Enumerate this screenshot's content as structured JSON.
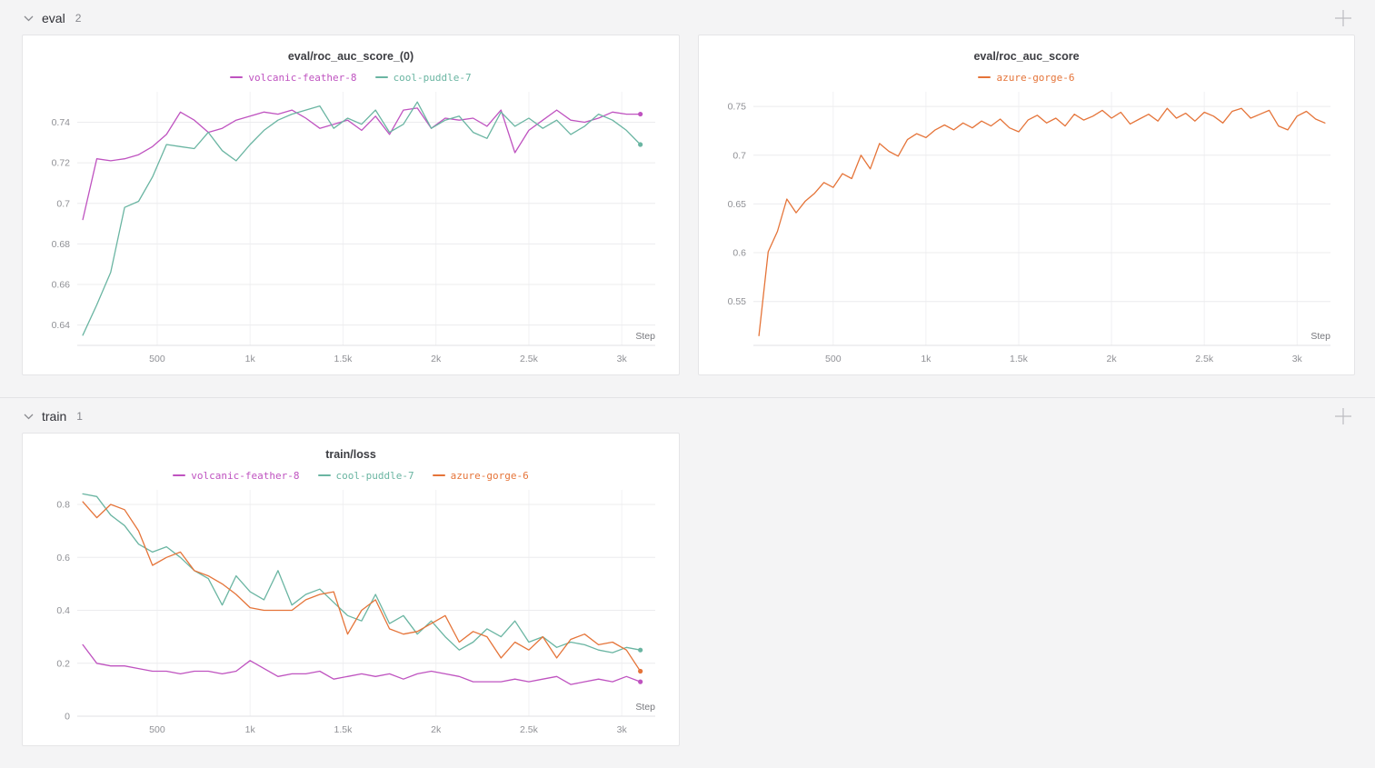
{
  "sections": [
    {
      "title": "eval",
      "count": "2",
      "collapse_icon": "chevron-down",
      "add_icon": "plus"
    },
    {
      "title": "train",
      "count": "1",
      "collapse_icon": "chevron-down",
      "add_icon": "plus"
    }
  ],
  "colors": {
    "volcanic_feather_8": "#bf53c0",
    "cool_puddle_7": "#6ab5a2",
    "azure_gorge_6": "#e57439",
    "grid": "#ececee",
    "grid_vertical": "#f1f1f3",
    "axis_line": "#e2e2e4",
    "tick_label": "#8f9095",
    "step_label": "#76777c"
  },
  "chart_data": [
    {
      "type": "line",
      "title": "eval/roc_auc_score_(0)",
      "xlabel": "Step",
      "xlim": [
        70,
        3180
      ],
      "ylim": [
        0.63,
        0.755
      ],
      "x_ticks": [
        500,
        1000,
        1500,
        2000,
        2500,
        3000
      ],
      "x_tick_labels": [
        "500",
        "1k",
        "1.5k",
        "2k",
        "2.5k",
        "3k"
      ],
      "y_ticks": [
        0.64,
        0.66,
        0.68,
        0.7,
        0.72,
        0.74
      ],
      "y_tick_labels": [
        "0.64",
        "0.66",
        "0.68",
        "0.7",
        "0.72",
        "0.74"
      ],
      "legend_position": "top",
      "grid": true,
      "series": [
        {
          "name": "volcanic-feather-8",
          "color": "#bf53c0",
          "x_start": 100,
          "x_step": 75,
          "end_dot": true,
          "y": [
            0.692,
            0.722,
            0.721,
            0.722,
            0.724,
            0.728,
            0.734,
            0.745,
            0.741,
            0.735,
            0.737,
            0.741,
            0.743,
            0.745,
            0.744,
            0.746,
            0.742,
            0.737,
            0.739,
            0.741,
            0.736,
            0.743,
            0.734,
            0.746,
            0.747,
            0.737,
            0.742,
            0.741,
            0.742,
            0.738,
            0.746,
            0.725,
            0.736,
            0.741,
            0.746,
            0.741,
            0.74,
            0.742,
            0.745,
            0.744,
            0.744
          ]
        },
        {
          "name": "cool-puddle-7",
          "color": "#6ab5a2",
          "x_start": 100,
          "x_step": 75,
          "end_dot": true,
          "y": [
            0.635,
            0.65,
            0.666,
            0.698,
            0.701,
            0.713,
            0.729,
            0.728,
            0.727,
            0.735,
            0.726,
            0.721,
            0.729,
            0.736,
            0.741,
            0.744,
            0.746,
            0.748,
            0.737,
            0.742,
            0.739,
            0.746,
            0.735,
            0.739,
            0.75,
            0.737,
            0.741,
            0.743,
            0.735,
            0.732,
            0.745,
            0.738,
            0.742,
            0.737,
            0.741,
            0.734,
            0.738,
            0.744,
            0.741,
            0.736,
            0.729
          ]
        }
      ]
    },
    {
      "type": "line",
      "title": "eval/roc_auc_score",
      "xlabel": "Step",
      "xlim": [
        70,
        3180
      ],
      "ylim": [
        0.505,
        0.765
      ],
      "x_ticks": [
        500,
        1000,
        1500,
        2000,
        2500,
        3000
      ],
      "x_tick_labels": [
        "500",
        "1k",
        "1.5k",
        "2k",
        "2.5k",
        "3k"
      ],
      "y_ticks": [
        0.55,
        0.6,
        0.65,
        0.7,
        0.75
      ],
      "y_tick_labels": [
        "0.55",
        "0.6",
        "0.65",
        "0.7",
        "0.75"
      ],
      "legend_position": "top",
      "grid": true,
      "series": [
        {
          "name": "azure-gorge-6",
          "color": "#e57439",
          "x_start": 100,
          "x_step": 50,
          "end_dot": false,
          "y": [
            0.515,
            0.601,
            0.622,
            0.655,
            0.641,
            0.653,
            0.661,
            0.672,
            0.667,
            0.681,
            0.676,
            0.7,
            0.686,
            0.712,
            0.704,
            0.699,
            0.716,
            0.722,
            0.718,
            0.726,
            0.731,
            0.726,
            0.733,
            0.728,
            0.735,
            0.73,
            0.737,
            0.728,
            0.724,
            0.736,
            0.741,
            0.733,
            0.738,
            0.73,
            0.742,
            0.736,
            0.74,
            0.746,
            0.738,
            0.744,
            0.732,
            0.737,
            0.742,
            0.735,
            0.748,
            0.738,
            0.743,
            0.735,
            0.744,
            0.74,
            0.733,
            0.745,
            0.748,
            0.738,
            0.742,
            0.746,
            0.73,
            0.726,
            0.74,
            0.745,
            0.737,
            0.733
          ]
        }
      ]
    },
    {
      "type": "line",
      "title": "train/loss",
      "xlabel": "Step",
      "xlim": [
        70,
        3180
      ],
      "ylim": [
        0,
        0.855
      ],
      "x_ticks": [
        500,
        1000,
        1500,
        2000,
        2500,
        3000
      ],
      "x_tick_labels": [
        "500",
        "1k",
        "1.5k",
        "2k",
        "2.5k",
        "3k"
      ],
      "y_ticks": [
        0,
        0.2,
        0.4,
        0.6,
        0.8
      ],
      "y_tick_labels": [
        "0",
        "0.2",
        "0.4",
        "0.6",
        "0.8"
      ],
      "legend_position": "top",
      "grid": true,
      "series": [
        {
          "name": "volcanic-feather-8",
          "color": "#bf53c0",
          "x_start": 100,
          "x_step": 75,
          "end_dot": true,
          "y": [
            0.27,
            0.2,
            0.19,
            0.19,
            0.18,
            0.17,
            0.17,
            0.16,
            0.17,
            0.17,
            0.16,
            0.17,
            0.21,
            0.18,
            0.15,
            0.16,
            0.16,
            0.17,
            0.14,
            0.15,
            0.16,
            0.15,
            0.16,
            0.14,
            0.16,
            0.17,
            0.16,
            0.15,
            0.13,
            0.13,
            0.13,
            0.14,
            0.13,
            0.14,
            0.15,
            0.12,
            0.13,
            0.14,
            0.13,
            0.15,
            0.13
          ]
        },
        {
          "name": "cool-puddle-7",
          "color": "#6ab5a2",
          "x_start": 100,
          "x_step": 75,
          "end_dot": true,
          "y": [
            0.84,
            0.83,
            0.76,
            0.72,
            0.65,
            0.62,
            0.64,
            0.6,
            0.55,
            0.52,
            0.42,
            0.53,
            0.47,
            0.44,
            0.55,
            0.42,
            0.46,
            0.48,
            0.43,
            0.38,
            0.36,
            0.46,
            0.35,
            0.38,
            0.31,
            0.36,
            0.3,
            0.25,
            0.28,
            0.33,
            0.3,
            0.36,
            0.28,
            0.3,
            0.26,
            0.28,
            0.27,
            0.25,
            0.24,
            0.26,
            0.25
          ]
        },
        {
          "name": "azure-gorge-6",
          "color": "#e57439",
          "x_start": 100,
          "x_step": 75,
          "end_dot": true,
          "y": [
            0.81,
            0.75,
            0.8,
            0.78,
            0.7,
            0.57,
            0.6,
            0.62,
            0.55,
            0.53,
            0.5,
            0.46,
            0.41,
            0.4,
            0.4,
            0.4,
            0.44,
            0.46,
            0.47,
            0.31,
            0.4,
            0.44,
            0.33,
            0.31,
            0.32,
            0.35,
            0.38,
            0.28,
            0.32,
            0.3,
            0.22,
            0.28,
            0.25,
            0.3,
            0.22,
            0.29,
            0.31,
            0.27,
            0.28,
            0.25,
            0.17
          ]
        }
      ]
    }
  ]
}
